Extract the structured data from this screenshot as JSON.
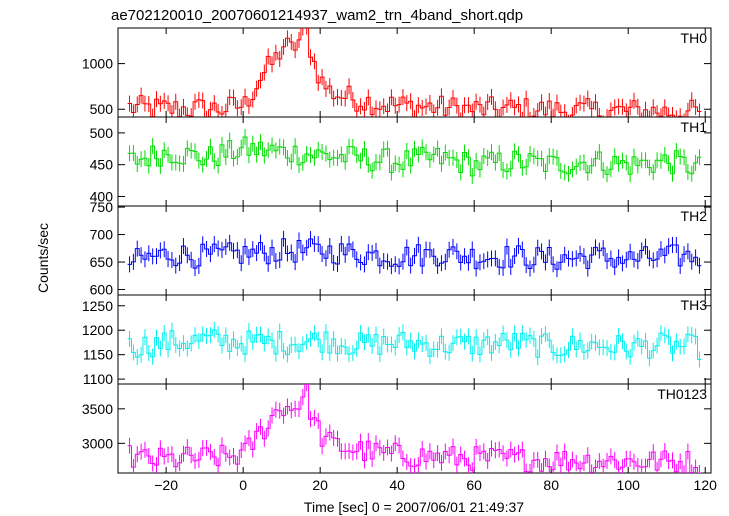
{
  "title": "ae702120010_20070601214937_wam2_trn_4band_short.qdp",
  "ylabel": "Counts/sec",
  "xlabel": "Time [sec] 0 = 2007/06/01 21:49:37",
  "x_ticks": [
    "−20",
    "0",
    "20",
    "40",
    "60",
    "80",
    "100",
    "120"
  ],
  "chart_data": [
    {
      "type": "line",
      "name": "TH0",
      "color": "#ff0000",
      "xlim": [
        -32.5,
        121.5
      ],
      "ylim": [
        415,
        1390
      ],
      "yticks": [
        500,
        1000
      ],
      "x": [
        -30,
        -25,
        -20,
        -15,
        -10,
        -5,
        0,
        2,
        4,
        6,
        8,
        10,
        12,
        14,
        16,
        18,
        20,
        22,
        25,
        30,
        35,
        40,
        50,
        60,
        70,
        80,
        90,
        100,
        110,
        118
      ],
      "y": [
        520,
        510,
        500,
        505,
        500,
        510,
        550,
        700,
        850,
        950,
        1050,
        1200,
        1150,
        1250,
        1350,
        1000,
        800,
        700,
        650,
        600,
        560,
        540,
        520,
        500,
        500,
        490,
        480,
        480,
        470,
        470
      ]
    },
    {
      "type": "line",
      "name": "TH1",
      "color": "#00dd00",
      "xlim": [
        -32.5,
        121.5
      ],
      "ylim": [
        385,
        525
      ],
      "yticks": [
        400,
        450,
        500
      ],
      "x": [
        -30,
        -20,
        -10,
        0,
        10,
        20,
        30,
        40,
        50,
        60,
        70,
        80,
        90,
        100,
        110,
        118
      ],
      "y": [
        455,
        470,
        460,
        475,
        470,
        465,
        460,
        455,
        460,
        450,
        455,
        450,
        455,
        450,
        455,
        445
      ]
    },
    {
      "type": "line",
      "name": "TH2",
      "color": "#0000ff",
      "xlim": [
        -32.5,
        121.5
      ],
      "ylim": [
        590,
        752
      ],
      "yticks": [
        600,
        650,
        700,
        750
      ],
      "x": [
        -30,
        -20,
        -10,
        0,
        10,
        20,
        30,
        40,
        50,
        60,
        70,
        80,
        90,
        100,
        110,
        118
      ],
      "y": [
        650,
        665,
        660,
        665,
        670,
        670,
        665,
        660,
        665,
        660,
        660,
        655,
        660,
        655,
        660,
        660
      ]
    },
    {
      "type": "line",
      "name": "TH3",
      "color": "#00f0f0",
      "xlim": [
        -32.5,
        121.5
      ],
      "ylim": [
        1090,
        1272
      ],
      "yticks": [
        1100,
        1150,
        1200,
        1250
      ],
      "x": [
        -30,
        -20,
        -10,
        0,
        10,
        20,
        30,
        40,
        50,
        60,
        70,
        80,
        90,
        100,
        110,
        118
      ],
      "y": [
        1165,
        1175,
        1180,
        1175,
        1175,
        1180,
        1170,
        1175,
        1170,
        1170,
        1175,
        1165,
        1170,
        1165,
        1170,
        1165
      ]
    },
    {
      "type": "line",
      "name": "TH0123",
      "color": "#ff00ff",
      "xlim": [
        -32.5,
        121.5
      ],
      "ylim": [
        2570,
        3860
      ],
      "yticks": [
        3000,
        3500
      ],
      "x": [
        -30,
        -25,
        -20,
        -15,
        -10,
        -5,
        0,
        2,
        4,
        6,
        8,
        10,
        12,
        14,
        16,
        18,
        20,
        22,
        25,
        30,
        35,
        40,
        50,
        60,
        70,
        80,
        90,
        100,
        110,
        118
      ],
      "y": [
        2800,
        2760,
        2760,
        2780,
        2790,
        2800,
        2850,
        3000,
        3150,
        3300,
        3450,
        3550,
        3500,
        3600,
        3720,
        3300,
        3100,
        3000,
        2950,
        2900,
        2850,
        2830,
        2800,
        2780,
        2770,
        2760,
        2750,
        2740,
        2730,
        2730
      ]
    }
  ]
}
